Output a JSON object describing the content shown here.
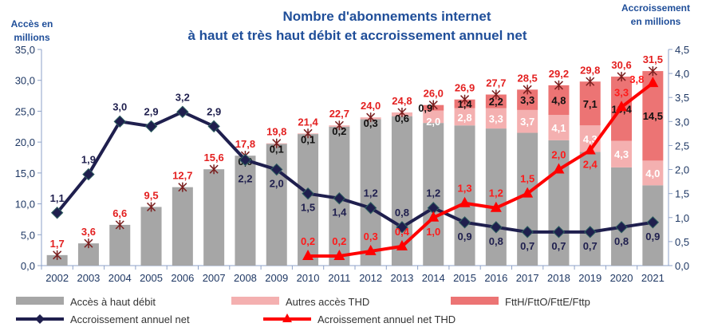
{
  "chart_data": {
    "type": "bar",
    "title_line1": "Nombre d'abonnements internet",
    "title_line2": "à haut et très haut débit et accroissement annuel net",
    "ylabel_left_line1": "Accès en",
    "ylabel_left_line2": "millions",
    "ylabel_right_line1": "Accroissement",
    "ylabel_right_line2": "en millions",
    "ylim_left": [
      0,
      35
    ],
    "ylim_right": [
      0,
      4.5
    ],
    "yticks_left": [
      "0,0",
      "5,0",
      "10,0",
      "15,0",
      "20,0",
      "25,0",
      "30,0",
      "35,0"
    ],
    "yticks_right": [
      "0,0",
      "0,5",
      "1,0",
      "1,5",
      "2,0",
      "2,5",
      "3,0",
      "3,5",
      "4,0",
      "4,5"
    ],
    "categories": [
      "2002",
      "2003",
      "2004",
      "2005",
      "2006",
      "2007",
      "2008",
      "2009",
      "2010",
      "2011",
      "2012",
      "2013",
      "2014",
      "2015",
      "2016",
      "2017",
      "2018",
      "2019",
      "2020",
      "2021"
    ],
    "totals": [
      1.7,
      3.6,
      6.6,
      9.5,
      12.7,
      15.6,
      17.8,
      19.8,
      21.4,
      22.7,
      24.0,
      24.8,
      26.0,
      26.9,
      27.7,
      28.5,
      29.2,
      29.8,
      30.6,
      31.5
    ],
    "series": [
      {
        "name": "Accès à haut débit",
        "type": "bar",
        "axis": "left",
        "color": "#a6a6a6",
        "values": [
          1.7,
          3.6,
          6.6,
          9.5,
          12.7,
          15.6,
          17.8,
          19.7,
          21.3,
          22.5,
          23.7,
          24.2,
          23.1,
          22.7,
          22.2,
          21.5,
          20.3,
          18.4,
          15.9,
          13.0
        ]
      },
      {
        "name": "Autres accès THD",
        "type": "bar",
        "axis": "left",
        "color": "#f4b0b0",
        "values": [
          0,
          0,
          0,
          0,
          0,
          0,
          0,
          0,
          0,
          0,
          0,
          0,
          2.0,
          2.8,
          3.3,
          3.7,
          4.1,
          4.3,
          4.3,
          4.0
        ]
      },
      {
        "name": "FttH/FttO/FttE/Fttp",
        "type": "bar",
        "axis": "left",
        "color": "#ec7474",
        "values": [
          null,
          null,
          null,
          null,
          null,
          null,
          0.0,
          0.1,
          0.1,
          0.2,
          0.3,
          0.6,
          0.9,
          1.4,
          2.2,
          3.3,
          4.8,
          7.1,
          10.4,
          14.5
        ]
      },
      {
        "name": "Accroissement annuel net",
        "type": "line",
        "axis": "right",
        "color": "#1f1f4e",
        "values": [
          1.1,
          1.9,
          3.0,
          2.9,
          3.2,
          2.9,
          2.2,
          2.0,
          1.5,
          1.4,
          1.2,
          0.8,
          1.2,
          0.9,
          0.8,
          0.7,
          0.7,
          0.7,
          0.8,
          0.9
        ]
      },
      {
        "name": "Acroissement annuel net THD",
        "type": "line",
        "axis": "right",
        "color": "#ff0000",
        "values": [
          null,
          null,
          null,
          null,
          null,
          null,
          null,
          null,
          0.2,
          0.2,
          0.3,
          0.4,
          1.0,
          1.3,
          1.2,
          1.5,
          2.0,
          2.4,
          3.3,
          3.8
        ]
      }
    ],
    "grid": false,
    "legend": "bottom"
  }
}
